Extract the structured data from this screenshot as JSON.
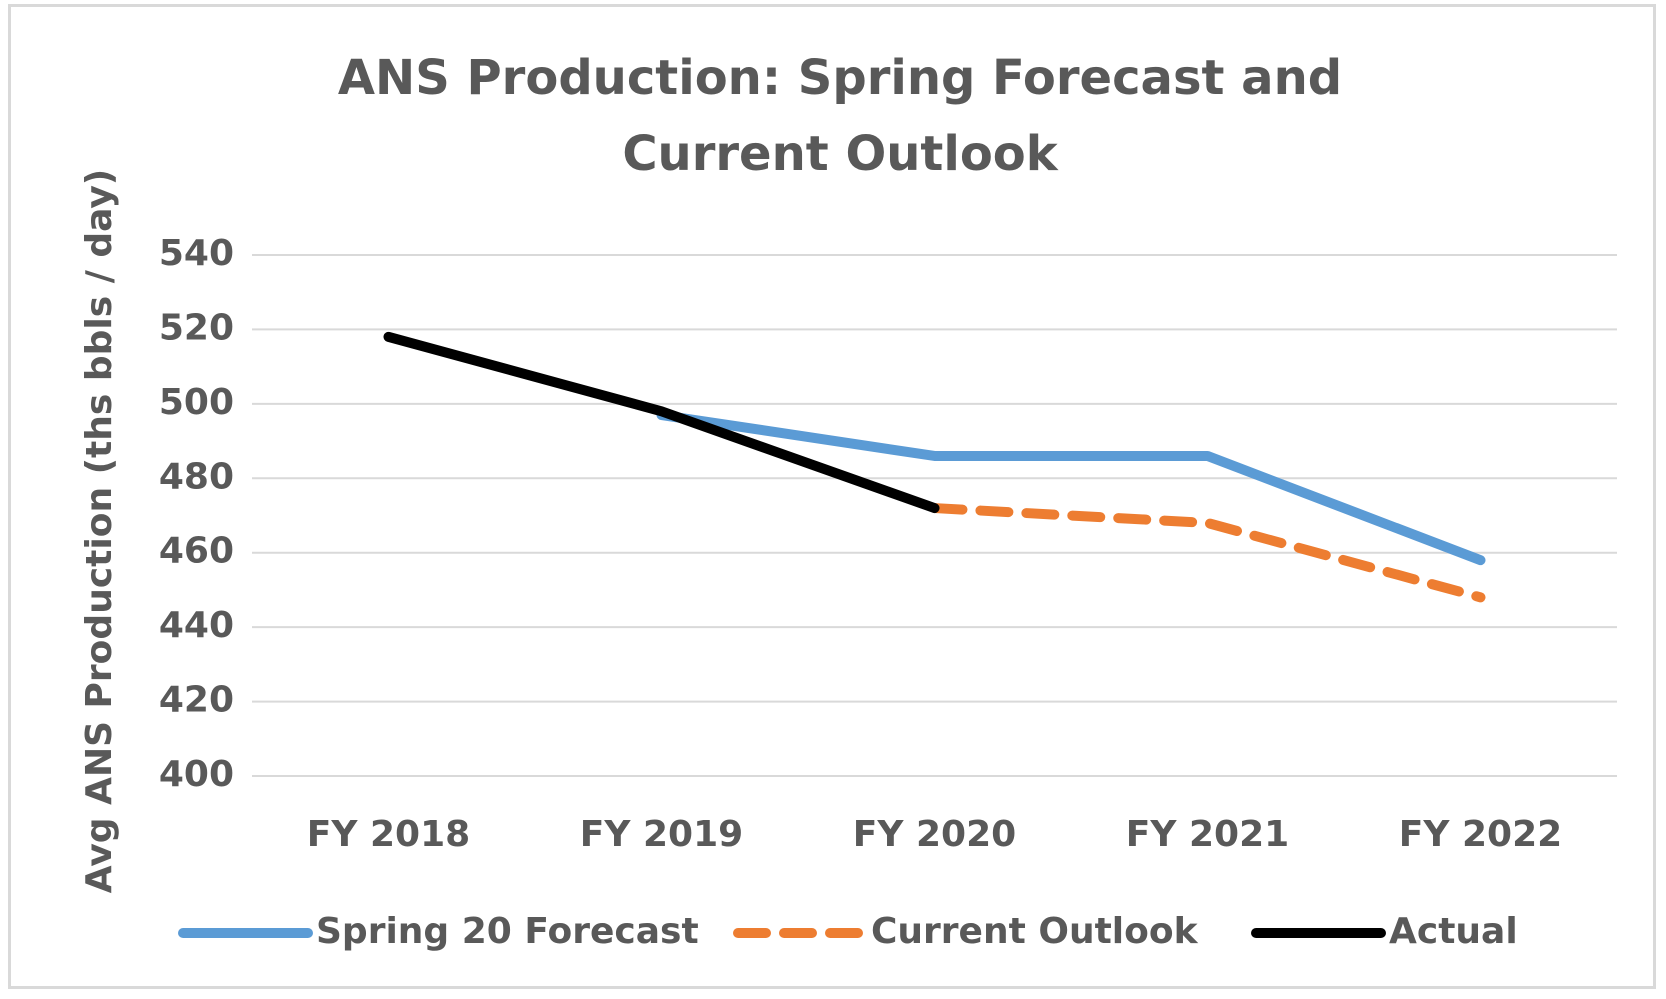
{
  "chart_data": {
    "type": "line",
    "title": "ANS Production: Spring Forecast and Current Outlook",
    "y_label": "Avg ANS Production (ths bbls / day)",
    "categories": [
      "FY 2018",
      "FY 2019",
      "FY 2020",
      "FY 2021",
      "FY 2022"
    ],
    "series": [
      {
        "name": "Spring 20 Forecast",
        "color": "#5b9bd5",
        "line_style": "solid",
        "values": [
          null,
          497,
          486,
          486,
          458
        ]
      },
      {
        "name": "Current Outlook",
        "color": "#ed7d31",
        "line_style": "dashed",
        "values": [
          null,
          null,
          472,
          468,
          448
        ]
      },
      {
        "name": "Actual",
        "color": "#000000",
        "line_style": "solid",
        "values": [
          518,
          498,
          472,
          null,
          null
        ]
      }
    ],
    "ylim": [
      400,
      540
    ],
    "yticks": [
      400,
      420,
      440,
      460,
      480,
      500,
      520,
      540
    ],
    "grid": true,
    "legend": "bottom"
  }
}
